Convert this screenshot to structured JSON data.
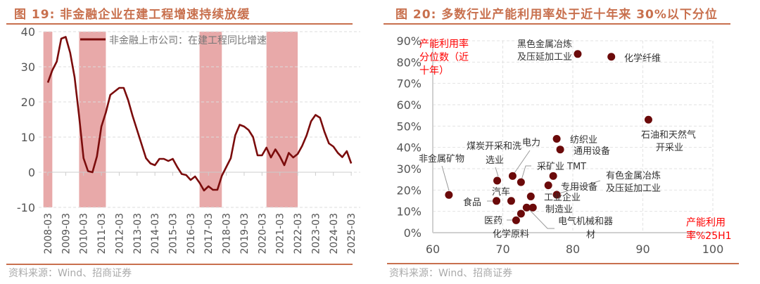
{
  "left": {
    "title": "图 19:  非金融企业在建工程增速持续放缓",
    "source": "资料来源：Wind、招商证券",
    "chart_data": {
      "type": "line",
      "legend": "非金融上市公司：在建工程同比增速",
      "legend_placement": "top",
      "ylim": [
        -10,
        40
      ],
      "yticks": [
        -10,
        0,
        10,
        20,
        30,
        40
      ],
      "xticks": [
        "2008-03",
        "2009-03",
        "2010-03",
        "2011-03",
        "2012-03",
        "2013-03",
        "2014-03",
        "2015-03",
        "2016-03",
        "2017-03",
        "2018-03",
        "2019-03",
        "2020-03",
        "2021-03",
        "2022-03",
        "2023-03",
        "2024-03",
        "2025-03"
      ],
      "grid": "horizontal dashed",
      "line_color": "#7b0c0c",
      "shade_color": "#e8a9a9",
      "shaded_periods": [
        [
          "2007-12",
          "2008-06"
        ],
        [
          "2009-12",
          "2011-06"
        ],
        [
          "2016-09",
          "2017-12"
        ],
        [
          "2020-06",
          "2022-03"
        ]
      ],
      "x_start": "2008-03",
      "frequency": "quarterly",
      "values": [
        25.5,
        29,
        31.5,
        38,
        38.5,
        34,
        27,
        16,
        4,
        0.3,
        0,
        4.5,
        13,
        17,
        22,
        23,
        24,
        24,
        20.5,
        16,
        12,
        8,
        4,
        2.5,
        2,
        3.8,
        3.8,
        3.2,
        3.8,
        1.5,
        -0.5,
        -0.8,
        -2.2,
        -1.2,
        -3,
        -5.2,
        -4,
        -5,
        -5,
        -1,
        1.5,
        4,
        10.5,
        13.5,
        13,
        12,
        10,
        4.8,
        4.8,
        7,
        4.2,
        6.5,
        4.5,
        2,
        5.5,
        4.2,
        5.2,
        7.5,
        10.5,
        14.5,
        16.3,
        15.5,
        11.5,
        8.2,
        7.3,
        5.5,
        4.3,
        6,
        2.5
      ]
    }
  },
  "right": {
    "title": "图 20:  多数行业产能利用率处于近十年来 30%以下分位",
    "source": "资料来源：Wind、招商证券",
    "chart_data": {
      "type": "scatter",
      "xlabel": [
        "产能利用",
        "率%25H1"
      ],
      "ylabel": [
        "产能利用率",
        "分位数（近",
        "十年）"
      ],
      "xlim": [
        60,
        100
      ],
      "ylim": [
        0,
        90
      ],
      "xticks": [
        60,
        70,
        80,
        90,
        100
      ],
      "yticks": [
        "0%",
        "10%",
        "20%",
        "30%",
        "40%",
        "50%",
        "60%",
        "70%",
        "80%",
        "90%"
      ],
      "grid": "dashed",
      "point_color": "#6b0a0a",
      "label_color": "#333333",
      "axis_label_color": "#ff0000",
      "points": [
        {
          "label": [
            "黑色金属冶炼",
            "及压延加工业"
          ],
          "x": 80.7,
          "y": 83.8
        },
        {
          "label": [
            "化学纤维"
          ],
          "x": 85.5,
          "y": 82.5
        },
        {
          "label": [
            "石油和天然气",
            "开采业"
          ],
          "x": 90.8,
          "y": 53
        },
        {
          "label": [
            "纺织业"
          ],
          "x": 77.7,
          "y": 44
        },
        {
          "label": [
            "通用设备"
          ],
          "x": 78.2,
          "y": 39
        },
        {
          "label": [
            "非金属矿物"
          ],
          "x": 62.3,
          "y": 17.7
        },
        {
          "label": [
            "煤炭开采和洗",
            "选业"
          ],
          "x": 69.2,
          "y": 24.4
        },
        {
          "label": [
            "电力"
          ],
          "x": 71.4,
          "y": 26.6
        },
        {
          "label": [
            "采矿业"
          ],
          "x": 72.6,
          "y": 23.7
        },
        {
          "label": [
            "TMT"
          ],
          "x": 77.2,
          "y": 26.6
        },
        {
          "label": [
            "专用设备"
          ],
          "x": 76.5,
          "y": 22.2
        },
        {
          "label": [
            "有色金属冶炼",
            "及压延加工业"
          ],
          "x": 77.7,
          "y": 17.8
        },
        {
          "label": [
            "工业企业"
          ],
          "x": 74.0,
          "y": 17
        },
        {
          "label": [
            "汽车"
          ],
          "x": 71.2,
          "y": 14.9
        },
        {
          "label": [
            "食品"
          ],
          "x": 69.1,
          "y": 14.9
        },
        {
          "label": [
            "电气机械和器",
            "材"
          ],
          "x": 73.4,
          "y": 11.8
        },
        {
          "label": [
            "制造业"
          ],
          "x": 74.3,
          "y": 11.8
        },
        {
          "label": [
            "化学原料"
          ],
          "x": 72.6,
          "y": 8.9
        },
        {
          "label": [
            "医药"
          ],
          "x": 71.9,
          "y": 5.8
        }
      ]
    }
  }
}
